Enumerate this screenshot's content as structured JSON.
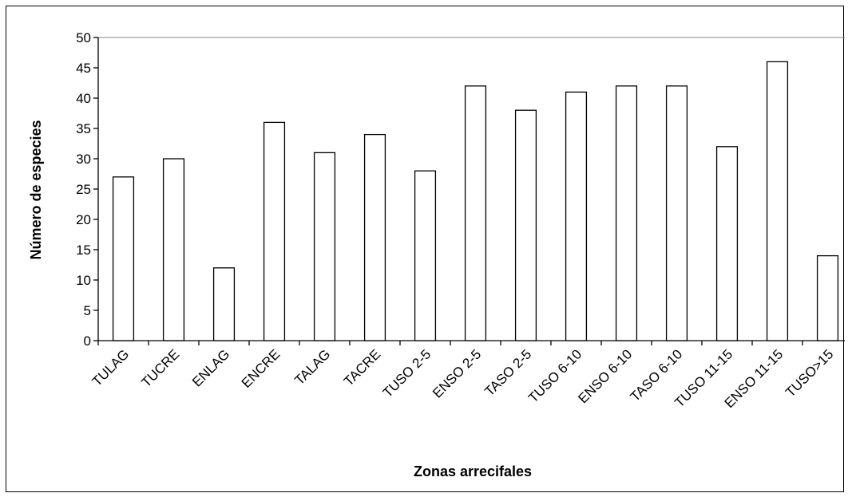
{
  "chart_data": {
    "type": "bar",
    "title": "",
    "xlabel": "Zonas arrecifales",
    "ylabel": "Número de especies",
    "categories": [
      "TULAG",
      "TUCRE",
      "ENLAG",
      "ENCRE",
      "TALAG",
      "TACRE",
      "TUSO 2-5",
      "ENSO 2-5",
      "TASO 2-5",
      "TUSO 6-10",
      "ENSO 6-10",
      "TASO 6-10",
      "TUSO 11-15",
      "ENSO 11-15",
      "TUSO>15"
    ],
    "values": [
      27,
      30,
      12,
      36,
      31,
      34,
      28,
      42,
      38,
      41,
      42,
      42,
      32,
      46,
      14
    ],
    "ylim": [
      0,
      50
    ],
    "yticks": [
      0,
      5,
      10,
      15,
      20,
      25,
      30,
      35,
      40,
      45,
      50
    ],
    "grid": false,
    "legend": "none",
    "colors": {
      "bar_fill": "#ffffff",
      "bar_stroke": "#000000",
      "axis": "#000000",
      "frame": "#808080"
    }
  }
}
